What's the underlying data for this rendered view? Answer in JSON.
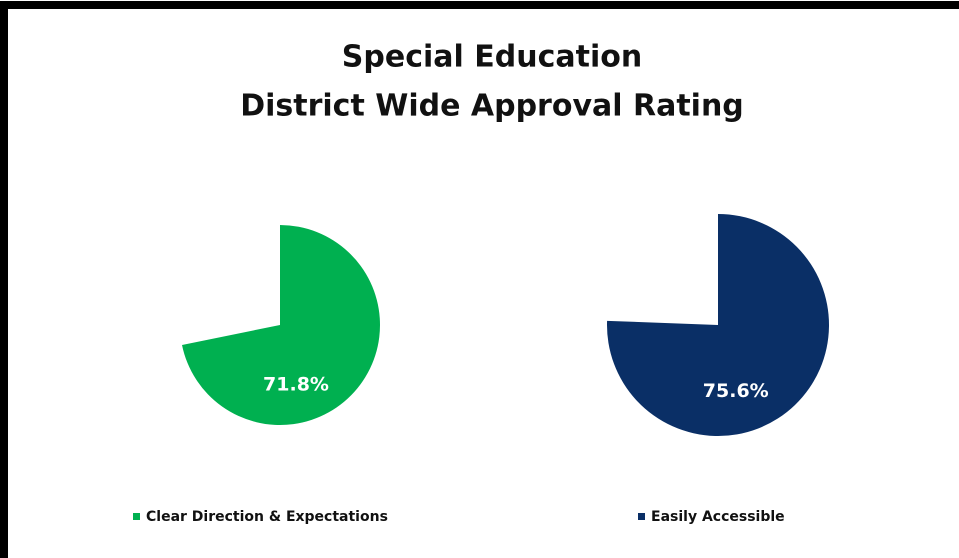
{
  "chart_data": {
    "type": "pie",
    "title": "Special Education",
    "subtitle": "District Wide Approval Rating",
    "series": [
      {
        "name": "Clear Direction & Expectations",
        "color": "#00b050",
        "values": [
          71.8
        ],
        "value_labels": [
          "71.8%"
        ]
      },
      {
        "name": "Easily Accessible",
        "color": "#0a2f66",
        "values": [
          75.6
        ],
        "value_labels": [
          "75.6%"
        ]
      }
    ]
  }
}
